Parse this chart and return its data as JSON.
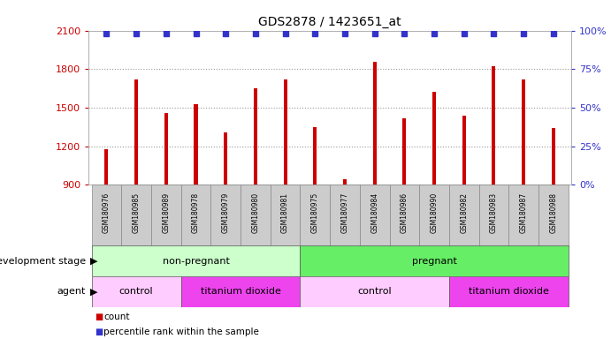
{
  "title": "GDS2878 / 1423651_at",
  "samples": [
    "GSM180976",
    "GSM180985",
    "GSM180989",
    "GSM180978",
    "GSM180979",
    "GSM180980",
    "GSM180981",
    "GSM180975",
    "GSM180977",
    "GSM180984",
    "GSM180986",
    "GSM180990",
    "GSM180982",
    "GSM180983",
    "GSM180987",
    "GSM180988"
  ],
  "counts": [
    1175,
    1720,
    1460,
    1530,
    1310,
    1650,
    1720,
    1350,
    940,
    1860,
    1420,
    1620,
    1440,
    1820,
    1720,
    1340
  ],
  "percentile_ranks": [
    98,
    98,
    98,
    98,
    98,
    98,
    98,
    98,
    98,
    98,
    98,
    98,
    98,
    98,
    98,
    98
  ],
  "bar_color": "#cc0000",
  "dot_color": "#3333cc",
  "ylim_left": [
    900,
    2100
  ],
  "yticks_left": [
    900,
    1200,
    1500,
    1800,
    2100
  ],
  "ylim_right": [
    0,
    100
  ],
  "yticks_right": [
    0,
    25,
    50,
    75,
    100
  ],
  "groups": {
    "development_stage": [
      {
        "label": "non-pregnant",
        "start": 0,
        "end": 7,
        "color": "#ccffcc"
      },
      {
        "label": "pregnant",
        "start": 7,
        "end": 16,
        "color": "#66ee66"
      }
    ],
    "agent": [
      {
        "label": "control",
        "start": 0,
        "end": 3,
        "color": "#ffccff"
      },
      {
        "label": "titanium dioxide",
        "start": 3,
        "end": 7,
        "color": "#ee44ee"
      },
      {
        "label": "control",
        "start": 7,
        "end": 12,
        "color": "#ffccff"
      },
      {
        "label": "titanium dioxide",
        "start": 12,
        "end": 16,
        "color": "#ee44ee"
      }
    ]
  },
  "background_color": "#ffffff",
  "tick_label_bg": "#cccccc",
  "grid_color": "#999999"
}
